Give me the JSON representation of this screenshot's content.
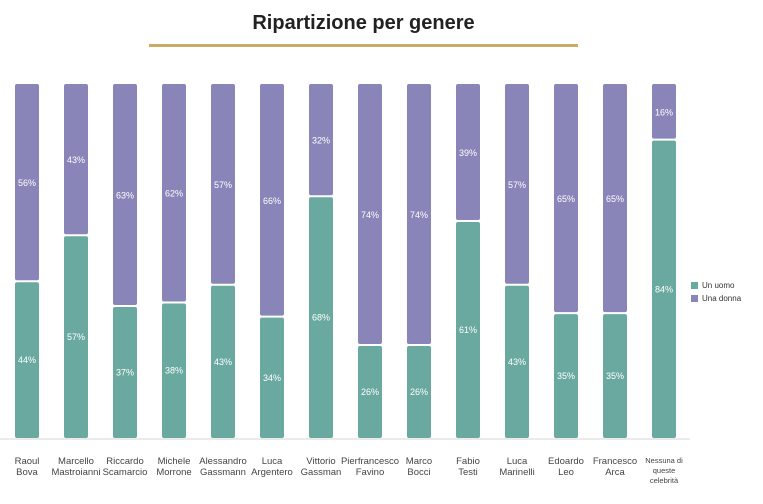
{
  "title": "Ripartizione per genere",
  "colors": {
    "uomo": "#6aa9a0",
    "donna": "#8a85b8",
    "rule": "#c9ab66",
    "value_text": "#ffffff"
  },
  "chart_data": {
    "type": "bar",
    "stacked": true,
    "title": "Ripartizione per genere",
    "ylim": [
      0,
      100
    ],
    "grid": false,
    "legend_position": "right",
    "categories": [
      "Raoul Bova",
      "Marcello Mastroianni",
      "Riccardo Scamarcio",
      "Michele Morrone",
      "Alessandro Gassmann",
      "Luca Argentero",
      "Vittorio Gassman",
      "Pierfrancesco Favino",
      "Marco Bocci",
      "Fabio Testi",
      "Luca Marinelli",
      "Edoardo Leo",
      "Francesco Arca",
      "Nessuna di queste celebrità"
    ],
    "category_lines": [
      [
        "Raoul",
        "Bova"
      ],
      [
        "Marcello",
        "Mastroianni"
      ],
      [
        "Riccardo",
        "Scamarcio"
      ],
      [
        "Michele",
        "Morrone"
      ],
      [
        "Alessandro",
        "Gassmann"
      ],
      [
        "Luca",
        "Argentero"
      ],
      [
        "Vittorio",
        "Gassman"
      ],
      [
        "Pierfrancesco",
        "Favino"
      ],
      [
        "Marco",
        "Bocci"
      ],
      [
        "Fabio",
        "Testi"
      ],
      [
        "Luca",
        "Marinelli"
      ],
      [
        "Edoardo",
        "Leo"
      ],
      [
        "Francesco",
        "Arca"
      ],
      [
        "Nessuna di",
        "queste",
        "celebrità"
      ]
    ],
    "series": [
      {
        "name": "Un uomo",
        "values": [
          44,
          57,
          37,
          38,
          43,
          34,
          68,
          26,
          26,
          61,
          43,
          35,
          35,
          84
        ]
      },
      {
        "name": "Una donna",
        "values": [
          56,
          43,
          63,
          62,
          57,
          66,
          32,
          74,
          74,
          39,
          57,
          65,
          65,
          16
        ]
      }
    ]
  }
}
